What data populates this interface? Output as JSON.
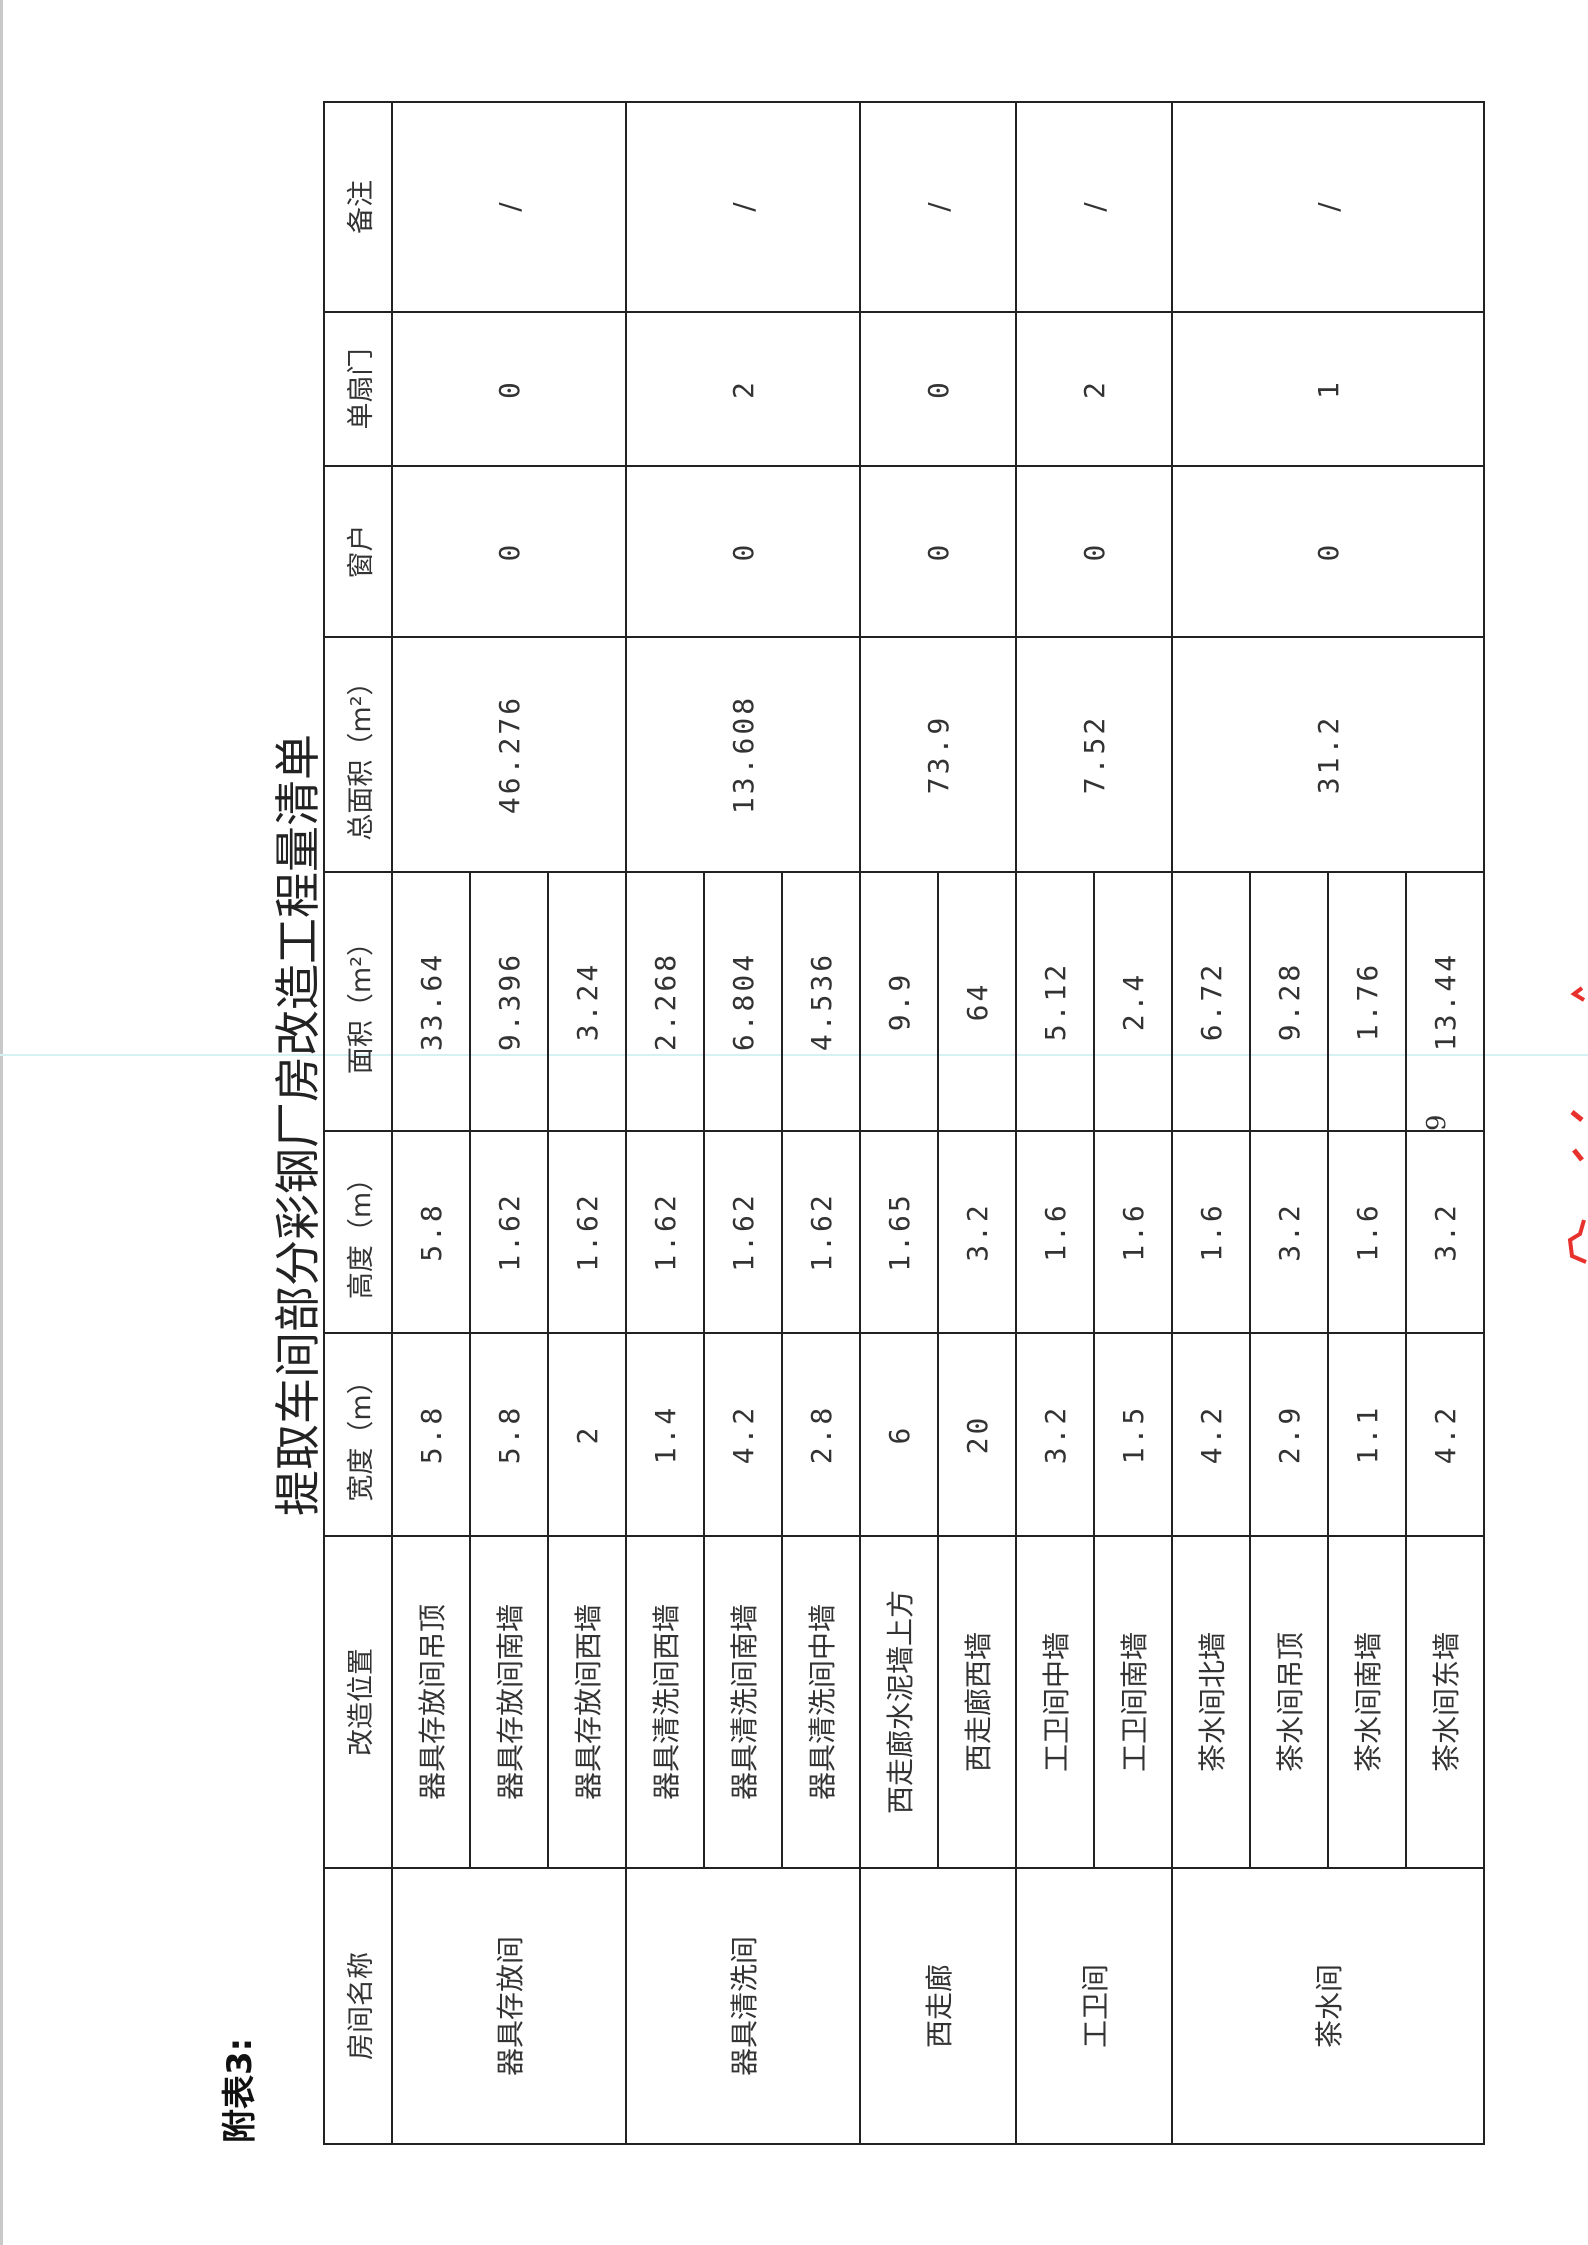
{
  "appendix_label": "附表3:",
  "title": "提取车间部分彩钢厂房改造工程量清单",
  "page_number": "9",
  "stamp_color": "#e8302c",
  "table": {
    "headers": [
      "房间名称",
      "改造位置",
      "宽度（m）",
      "高度（m）",
      "面积（m²）",
      "总面积（m²）",
      "窗户",
      "单扇门",
      "备注"
    ],
    "groups": [
      {
        "room": "器具存放间",
        "total_area": "46.276",
        "windows": "0",
        "single_doors": "0",
        "remark": "/",
        "items": [
          {
            "location": "器具存放间吊顶",
            "width": "5.8",
            "height": "5.8",
            "area": "33.64"
          },
          {
            "location": "器具存放间南墙",
            "width": "5.8",
            "height": "1.62",
            "area": "9.396"
          },
          {
            "location": "器具存放间西墙",
            "width": "2",
            "height": "1.62",
            "area": "3.24"
          }
        ]
      },
      {
        "room": "器具清洗间",
        "total_area": "13.608",
        "windows": "0",
        "single_doors": "2",
        "remark": "/",
        "items": [
          {
            "location": "器具清洗间西墙",
            "width": "1.4",
            "height": "1.62",
            "area": "2.268"
          },
          {
            "location": "器具清洗间南墙",
            "width": "4.2",
            "height": "1.62",
            "area": "6.804"
          },
          {
            "location": "器具清洗间中墙",
            "width": "2.8",
            "height": "1.62",
            "area": "4.536"
          }
        ]
      },
      {
        "room": "西走廊",
        "total_area": "73.9",
        "windows": "0",
        "single_doors": "0",
        "remark": "/",
        "items": [
          {
            "location": "西走廊水泥墙上方",
            "width": "6",
            "height": "1.65",
            "area": "9.9"
          },
          {
            "location": "西走廊西墙",
            "width": "20",
            "height": "3.2",
            "area": "64"
          }
        ]
      },
      {
        "room": "工卫间",
        "total_area": "7.52",
        "windows": "0",
        "single_doors": "2",
        "remark": "/",
        "items": [
          {
            "location": "工卫间中墙",
            "width": "3.2",
            "height": "1.6",
            "area": "5.12"
          },
          {
            "location": "工卫间南墙",
            "width": "1.5",
            "height": "1.6",
            "area": "2.4"
          }
        ]
      },
      {
        "room": "茶水间",
        "total_area": "31.2",
        "windows": "0",
        "single_doors": "1",
        "remark": "/",
        "items": [
          {
            "location": "茶水间北墙",
            "width": "4.2",
            "height": "1.6",
            "area": "6.72"
          },
          {
            "location": "茶水间吊顶",
            "width": "2.9",
            "height": "3.2",
            "area": "9.28"
          },
          {
            "location": "茶水间南墙",
            "width": "1.1",
            "height": "1.6",
            "area": "1.76"
          },
          {
            "location": "茶水间东墙",
            "width": "4.2",
            "height": "3.2",
            "area": "13.44"
          }
        ]
      }
    ]
  }
}
